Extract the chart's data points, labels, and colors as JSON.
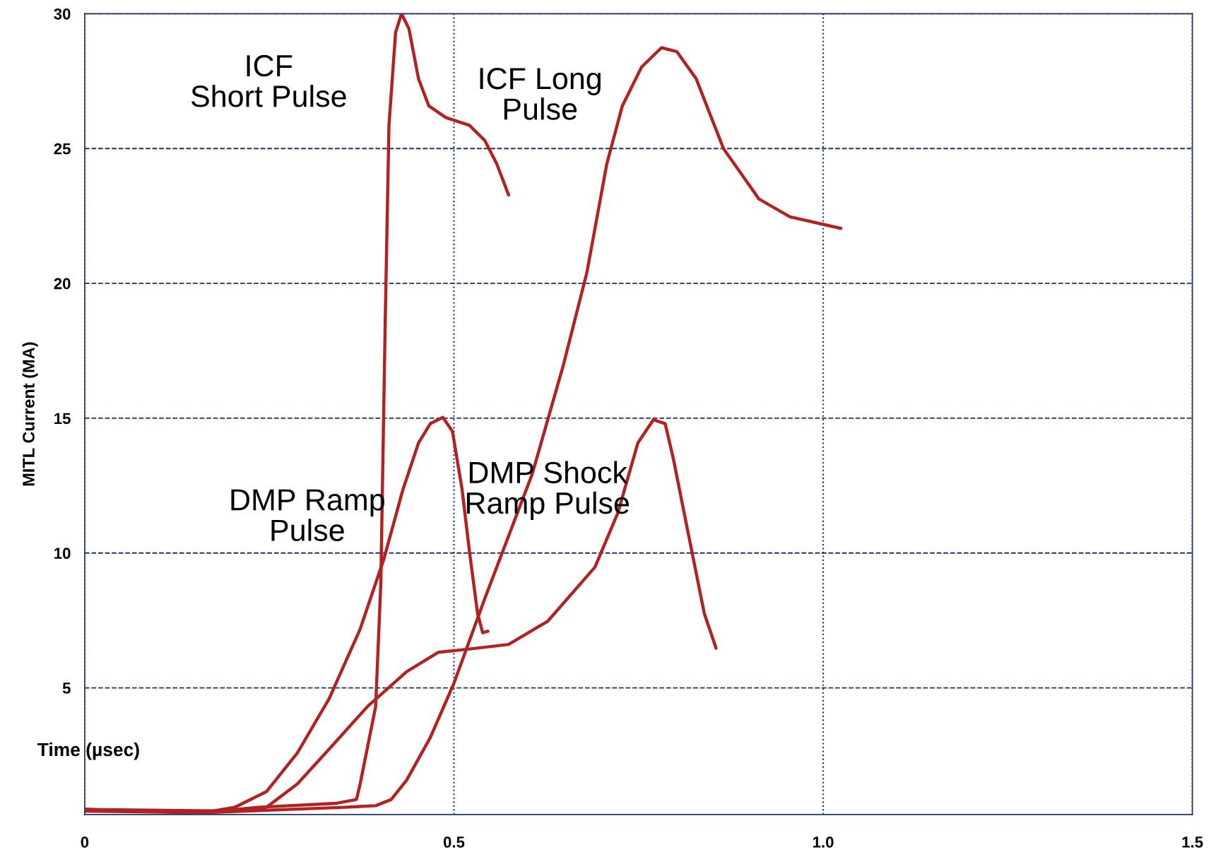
{
  "chart_data": {
    "type": "line",
    "xlabel": "Time (µsec)",
    "ylabel": "MITL Current (MA)",
    "xlim": [
      0,
      1.5
    ],
    "ylim": [
      0.3,
      30
    ],
    "xticks": [
      0,
      0.5,
      {
        "value": 1.0,
        "label": "1.0"
      },
      1.5
    ],
    "yticks": [
      5,
      10,
      15,
      20,
      25,
      30
    ],
    "grid": true,
    "legend": false,
    "marker": "none",
    "line_style": "solid",
    "series": [
      {
        "name": "ICF\nShort Pulse",
        "color": "#b22222",
        "x": [
          0,
          0.161,
          0.235,
          0.341,
          0.368,
          0.373,
          0.394,
          0.401,
          0.407,
          0.412,
          0.421,
          0.429,
          0.439,
          0.452,
          0.466,
          0.489,
          0.521,
          0.542,
          0.558,
          0.574
        ],
        "values": [
          0.49,
          0.37,
          0.57,
          0.72,
          0.86,
          1.44,
          4.31,
          8.91,
          18.68,
          25.86,
          29.31,
          30,
          29.45,
          27.59,
          26.58,
          26.15,
          25.86,
          25.29,
          24.43,
          23.28
        ]
      },
      {
        "name": "ICF Long\nPulse",
        "color": "#b22222",
        "x": [
          0,
          0.161,
          0.352,
          0.394,
          0.415,
          0.436,
          0.468,
          0.5,
          0.542,
          0.606,
          0.648,
          0.68,
          0.707,
          0.728,
          0.754,
          0.781,
          0.802,
          0.828,
          0.865,
          0.913,
          0.955,
          1.024
        ],
        "values": [
          0.49,
          0.37,
          0.57,
          0.63,
          0.86,
          1.58,
          3.16,
          5.17,
          8.33,
          12.93,
          16.95,
          20.4,
          24.43,
          26.58,
          28.02,
          28.74,
          28.59,
          27.59,
          25.0,
          23.13,
          22.47,
          22.04
        ]
      },
      {
        "name": "DMP Ramp\nPulse",
        "color": "#b22222",
        "x": [
          0,
          0.161,
          0.203,
          0.246,
          0.288,
          0.331,
          0.373,
          0.405,
          0.431,
          0.452,
          0.468,
          0.485,
          0.498,
          0.511,
          0.521,
          0.532,
          0.539,
          0.546
        ],
        "values": [
          0.43,
          0.37,
          0.57,
          1.15,
          2.59,
          4.6,
          7.18,
          9.77,
          12.36,
          14.08,
          14.8,
          15.03,
          14.51,
          12.36,
          10.06,
          7.76,
          7.04,
          7.1
        ]
      },
      {
        "name": "DMP Shock\nRamp Pulse",
        "color": "#b22222",
        "x": [
          0,
          0.203,
          0.246,
          0.288,
          0.331,
          0.383,
          0.436,
          0.479,
          0.521,
          0.574,
          0.627,
          0.691,
          0.722,
          0.749,
          0.77,
          0.786,
          0.797,
          0.818,
          0.839,
          0.855
        ],
        "values": [
          0.49,
          0.43,
          0.57,
          1.44,
          2.73,
          4.31,
          5.6,
          6.32,
          6.44,
          6.61,
          7.47,
          9.48,
          11.49,
          14.08,
          14.94,
          14.8,
          13.51,
          10.63,
          7.76,
          6.47
        ]
      }
    ]
  }
}
